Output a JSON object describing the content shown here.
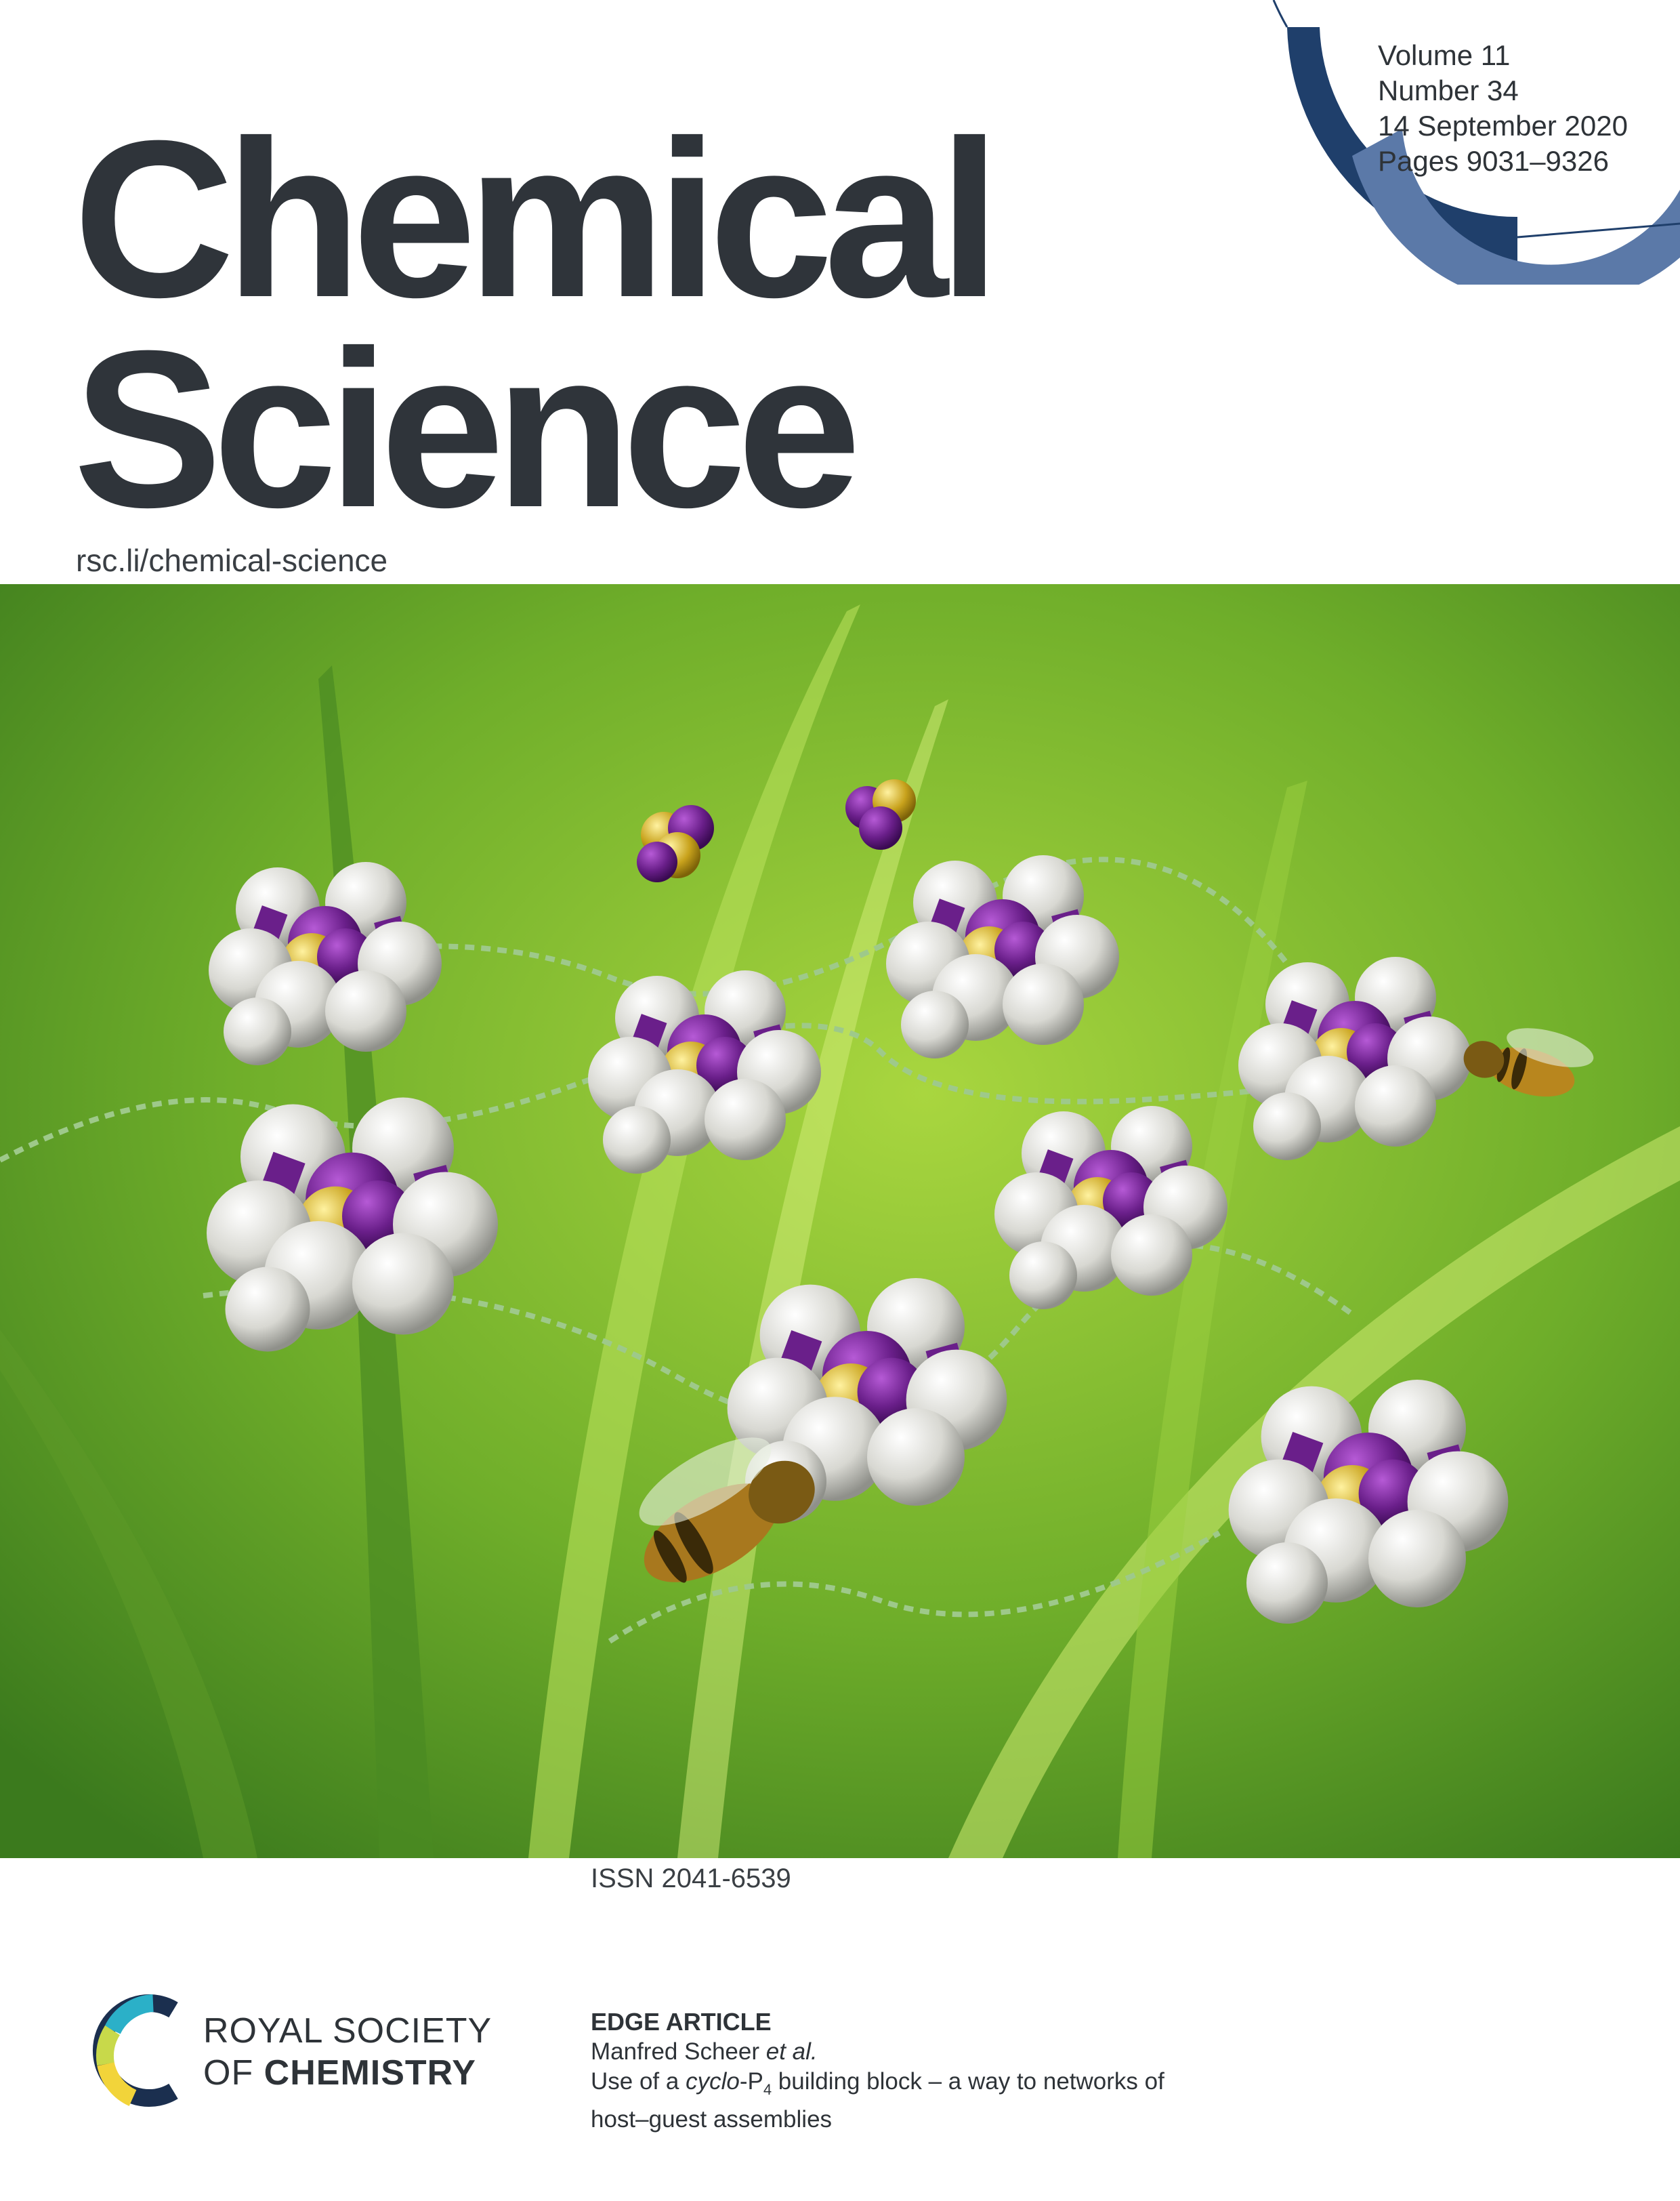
{
  "journal": {
    "title_line1": "Chemical",
    "title_line2": "Science",
    "url": "rsc.li/chemical-science"
  },
  "issue": {
    "volume": "Volume 11",
    "number": "Number 34",
    "date": "14 September 2020",
    "pages": "Pages 9031–9326"
  },
  "issn": "ISSN 2041-6539",
  "publisher": {
    "line1": "ROYAL SOCIETY",
    "line2_prefix": "OF ",
    "line2_bold": "CHEMISTRY"
  },
  "article": {
    "type": "EDGE ARTICLE",
    "author_name": "Manfred Scheer ",
    "author_etal": "et al.",
    "title_part1": "Use of a ",
    "title_cyclo": "cyclo",
    "title_p": "-P",
    "title_sub": "4",
    "title_part2": " building block – a way to networks of",
    "title_line2": "host–guest assemblies"
  },
  "colors": {
    "title": "#2f343a",
    "arc_dark": "#1f3f6b",
    "arc_light": "#5b79a8",
    "grass_light": "#a8d53a",
    "grass_dark": "#3f7a1e",
    "sphere_white": "#e8e8e4",
    "sphere_purple": "#6a1f8a",
    "sphere_gold": "#c8a21c",
    "linker_green": "#9ec98a"
  }
}
